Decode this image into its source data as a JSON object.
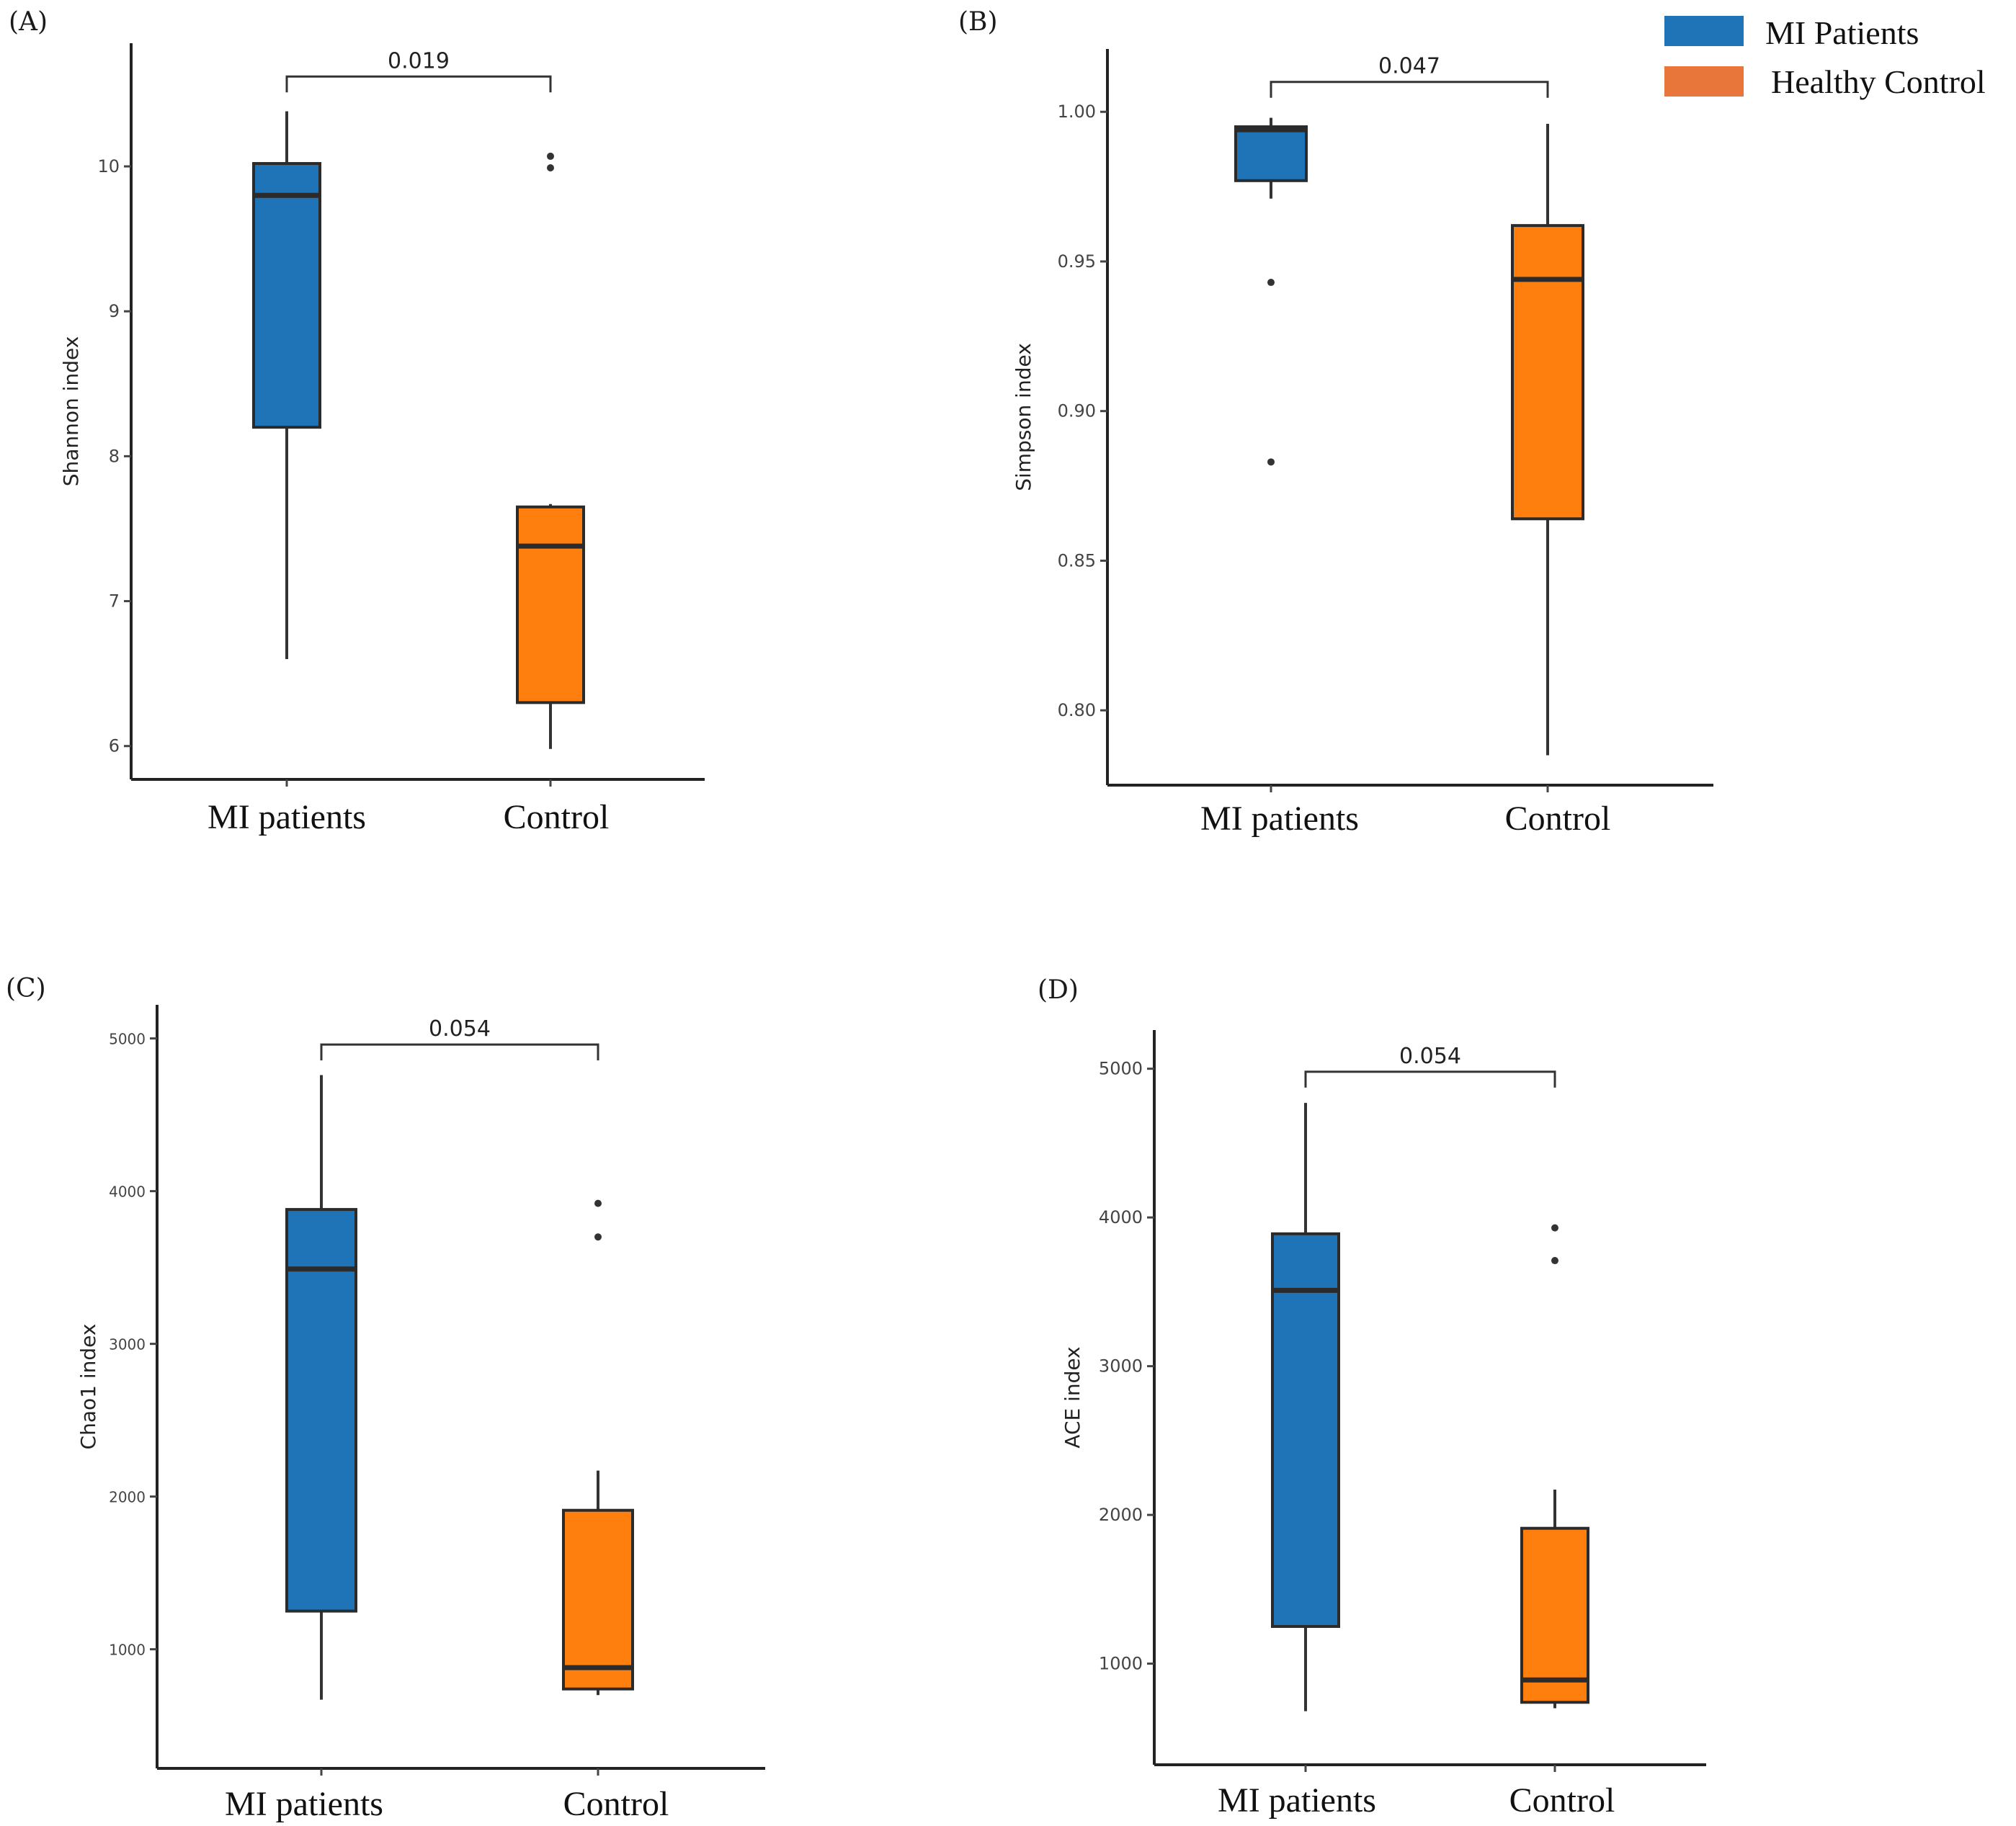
{
  "legend": {
    "items": [
      {
        "label": "MI Patients",
        "color": "#1f73b7"
      },
      {
        "label": "Healthy Control",
        "color": "#e8763a"
      }
    ]
  },
  "chart_data": [
    {
      "panel": "(A)",
      "type": "boxplot",
      "ylabel": "Shannon index",
      "ylim": [
        5.77,
        10.85
      ],
      "yticks": [
        6,
        7,
        8,
        9,
        10
      ],
      "categories": [
        "MI patients",
        "Control"
      ],
      "colors": [
        "#1f73b7",
        "#ff7f0e"
      ],
      "pvalue": "0.019",
      "boxes": [
        {
          "group": "MI patients",
          "whisker_low": 6.6,
          "q1": 8.2,
          "median": 9.8,
          "q3": 10.02,
          "whisker_high": 10.38,
          "outliers": []
        },
        {
          "group": "Control",
          "whisker_low": 5.98,
          "q1": 6.3,
          "median": 7.38,
          "q3": 7.65,
          "whisker_high": 7.67,
          "outliers": [
            10.07,
            9.99
          ]
        }
      ],
      "bracket_y": 10.62
    },
    {
      "panel": "(B)",
      "type": "boxplot",
      "ylabel": "Simpson index",
      "ylim": [
        0.775,
        1.021
      ],
      "yticks": [
        "0.80",
        "0.85",
        "0.90",
        "0.95",
        "1.00"
      ],
      "categories": [
        "MI patients",
        "Control"
      ],
      "colors": [
        "#1f73b7",
        "#ff7f0e"
      ],
      "pvalue": "0.047",
      "boxes": [
        {
          "group": "MI patients",
          "whisker_low": 0.971,
          "q1": 0.977,
          "median": 0.994,
          "q3": 0.995,
          "whisker_high": 0.998,
          "outliers": [
            0.943,
            0.883
          ]
        },
        {
          "group": "Control",
          "whisker_low": 0.785,
          "q1": 0.864,
          "median": 0.944,
          "q3": 0.962,
          "whisker_high": 0.996,
          "outliers": []
        }
      ],
      "bracket_y": 1.01
    },
    {
      "panel": "(C)",
      "type": "boxplot",
      "ylabel": "Chao1 index",
      "ylim": [
        220,
        5220
      ],
      "yticks": [
        1000,
        2000,
        3000,
        4000,
        5000
      ],
      "categories": [
        "MI patients",
        "Control"
      ],
      "colors": [
        "#1f73b7",
        "#ff7f0e"
      ],
      "pvalue": "0.054",
      "boxes": [
        {
          "group": "MI patients",
          "whisker_low": 670,
          "q1": 1250,
          "median": 3490,
          "q3": 3880,
          "whisker_high": 4760,
          "outliers": []
        },
        {
          "group": "Control",
          "whisker_low": 700,
          "q1": 740,
          "median": 880,
          "q3": 1910,
          "whisker_high": 2170,
          "outliers": [
            3920,
            3700
          ]
        }
      ],
      "bracket_y": 4960
    },
    {
      "panel": "(D)",
      "type": "boxplot",
      "ylabel": "ACE index",
      "ylim": [
        320,
        5260
      ],
      "yticks": [
        1000,
        2000,
        3000,
        4000,
        5000
      ],
      "categories": [
        "MI patients",
        "Control"
      ],
      "colors": [
        "#1f73b7",
        "#ff7f0e"
      ],
      "pvalue": "0.054",
      "boxes": [
        {
          "group": "MI patients",
          "whisker_low": 680,
          "q1": 1250,
          "median": 3510,
          "q3": 3890,
          "whisker_high": 4770,
          "outliers": []
        },
        {
          "group": "Control",
          "whisker_low": 700,
          "q1": 740,
          "median": 890,
          "q3": 1910,
          "whisker_high": 2170,
          "outliers": [
            3930,
            3710
          ]
        }
      ],
      "bracket_y": 4980
    }
  ]
}
